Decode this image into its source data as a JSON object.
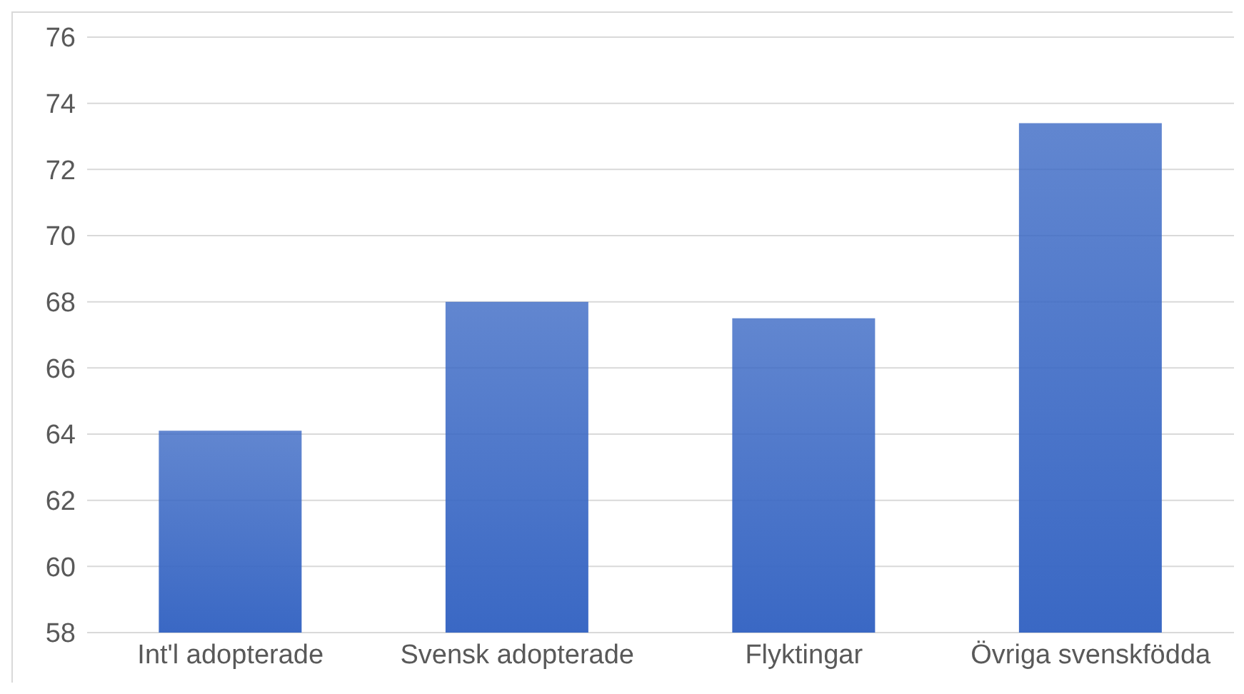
{
  "chart_data": {
    "type": "bar",
    "categories": [
      "Int'l adopterade",
      "Svensk adopterade",
      "Flyktingar",
      "Övriga svenskfödda"
    ],
    "values": [
      64.1,
      68.0,
      67.5,
      73.4
    ],
    "color": "#3a68c4",
    "ylim": [
      58,
      76
    ],
    "yticks": [
      58,
      60,
      62,
      64,
      66,
      68,
      70,
      72,
      74,
      76
    ],
    "grid": "y"
  }
}
